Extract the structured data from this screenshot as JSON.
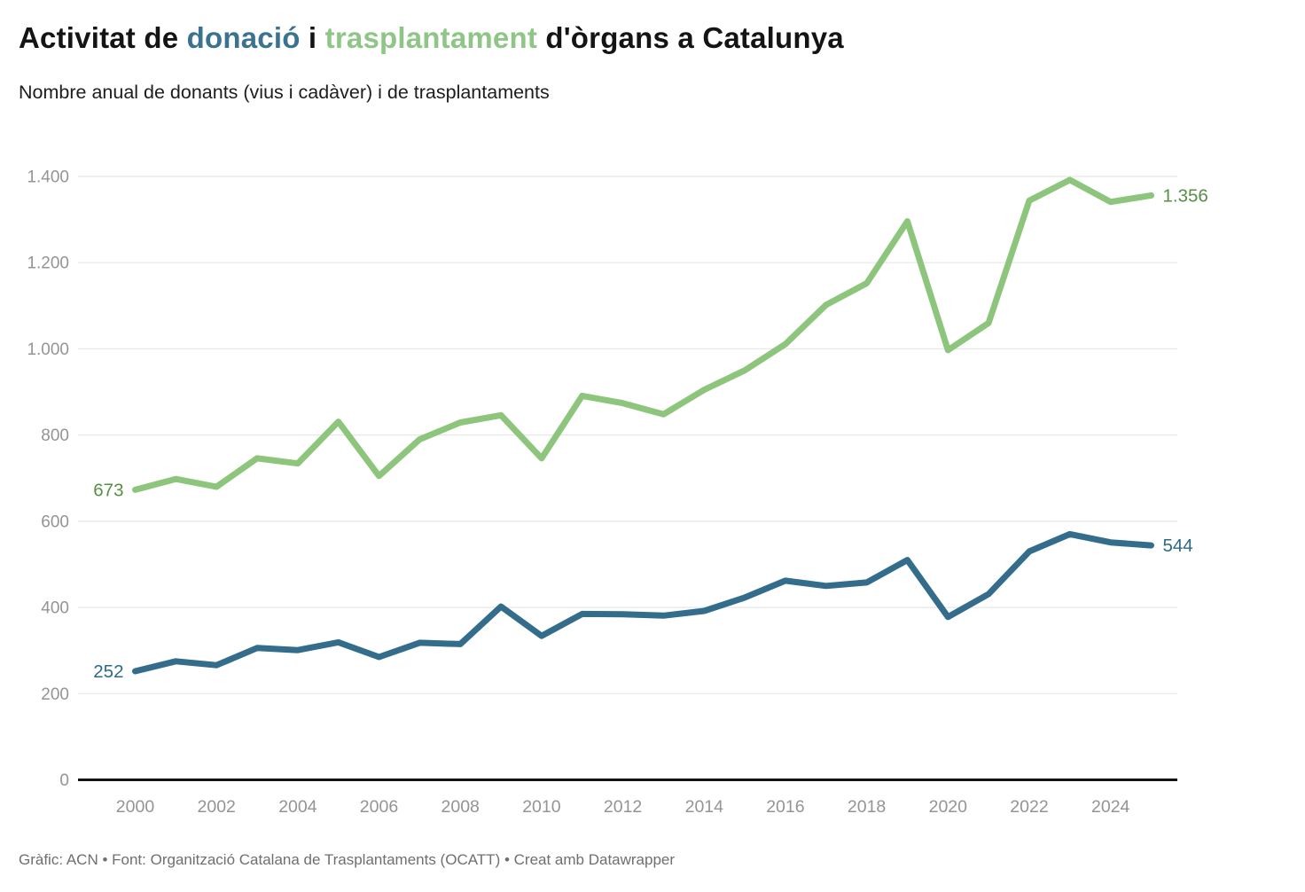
{
  "title": {
    "prefix": "Activitat de ",
    "highlight_donacio": "donació",
    "middle": " i ",
    "highlight_trasplantament": "trasplantament",
    "suffix": " d'òrgans a Catalunya"
  },
  "subtitle": "Nombre anual de donants (vius i cadàver) i de trasplantaments",
  "footer": "Gràfic: ACN • Font: Organització Catalana de Trasplantaments (OCATT) • Creat amb Datawrapper",
  "colors": {
    "title_text": "#141414",
    "donacio_title": "#3a7390",
    "trasplantament_title": "#8fc687",
    "grid": "#e7e7e7",
    "axis_baseline": "#131313",
    "tick_text": "#949494",
    "footer_text": "#6f6f6f"
  },
  "chart_data": {
    "type": "line",
    "title": "Activitat de donació i trasplantament d'òrgans a Catalunya",
    "subtitle": "Nombre anual de donants (vius i cadàver) i de trasplantaments",
    "xlabel": "",
    "ylabel": "",
    "x": [
      2000,
      2001,
      2002,
      2003,
      2004,
      2005,
      2006,
      2007,
      2008,
      2009,
      2010,
      2011,
      2012,
      2013,
      2014,
      2015,
      2016,
      2017,
      2018,
      2019,
      2020,
      2021,
      2022,
      2023,
      2024,
      2025
    ],
    "x_tick_labels": [
      "2000",
      "2002",
      "2004",
      "2006",
      "2008",
      "2010",
      "2012",
      "2014",
      "2016",
      "2018",
      "2020",
      "2022",
      "2024"
    ],
    "y_ticks": [
      0,
      200,
      400,
      600,
      800,
      1000,
      1200,
      1400
    ],
    "y_tick_labels": [
      "0",
      "200",
      "400",
      "600",
      "800",
      "1.000",
      "1.200",
      "1.400"
    ],
    "ylim": [
      0,
      1400
    ],
    "grid": "horizontal",
    "legend_position": "none (series colors shown in title words)",
    "series": [
      {
        "name": "trasplantaments",
        "color": "#8ec57d",
        "label_color": "#578f45",
        "start_label": "673",
        "end_label": "1.356",
        "values": [
          673,
          698,
          680,
          746,
          734,
          831,
          705,
          790,
          829,
          846,
          746,
          891,
          874,
          848,
          905,
          950,
          1011,
          1102,
          1152,
          1296,
          997,
          1060,
          1344,
          1392,
          1341,
          1356
        ]
      },
      {
        "name": "donants",
        "color": "#336d8b",
        "label_color": "#2d6a88",
        "start_label": "252",
        "end_label": "544",
        "values": [
          252,
          275,
          266,
          306,
          301,
          319,
          285,
          318,
          315,
          402,
          334,
          385,
          384,
          381,
          392,
          423,
          462,
          450,
          458,
          510,
          378,
          431,
          530,
          570,
          551,
          544
        ]
      }
    ]
  }
}
